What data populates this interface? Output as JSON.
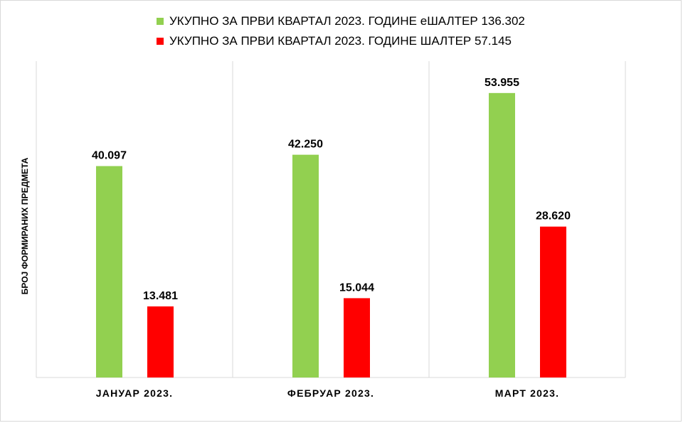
{
  "chart_data": {
    "type": "bar",
    "categories": [
      "ЈАНУАР 2023.",
      "ФЕБРУАР 2023.",
      "МАРТ 2023."
    ],
    "series": [
      {
        "name": "УКУПНО ЗА ПРВИ КВАРТАЛ 2023. ГОДИНЕ еШАЛТЕР 136.302",
        "color": "#92d050",
        "values": [
          40097,
          42250,
          53955
        ],
        "labels": [
          "40.097",
          "42.250",
          "53.955"
        ]
      },
      {
        "name": "УКУПНО ЗА ПРВИ КВАРТАЛ 2023. ГОДИНЕ ШАЛТЕР 57.145",
        "color": "#ff0000",
        "values": [
          13481,
          15044,
          28620
        ],
        "labels": [
          "13.481",
          "15.044",
          "28.620"
        ]
      }
    ],
    "ylabel": "БРОЈ ФОРМИРАНИХ ПРЕДМЕТА",
    "ylim": [
      0,
      60000
    ],
    "grid": "vertical-category-dividers",
    "legend": "top-center"
  }
}
